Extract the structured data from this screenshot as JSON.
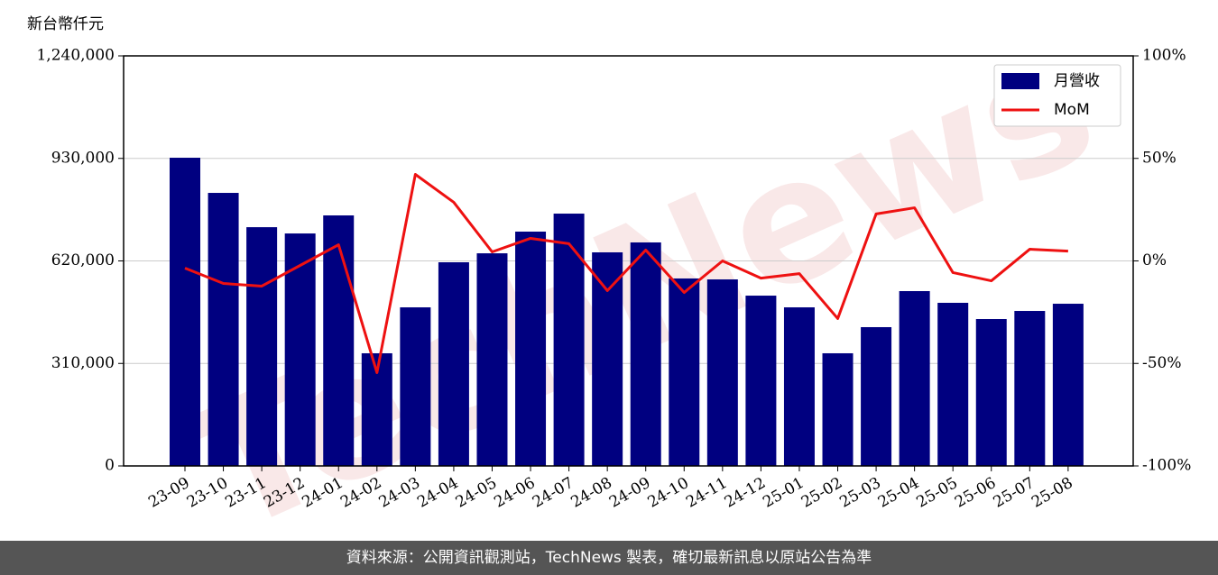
{
  "chart_data": {
    "type": "bar-line",
    "y_label": "新台幣仟元",
    "watermark": "TechNews",
    "footer": "資料來源：公開資訊觀測站，TechNews 製表，確切最新訊息以原站公告為準",
    "categories": [
      "23-09",
      "23-10",
      "23-11",
      "23-12",
      "24-01",
      "24-02",
      "24-03",
      "24-04",
      "24-05",
      "24-06",
      "24-07",
      "24-08",
      "24-09",
      "24-10",
      "24-11",
      "24-12",
      "25-01",
      "25-02",
      "25-03",
      "25-04",
      "25-05",
      "25-06",
      "25-07",
      "25-08"
    ],
    "series": [
      {
        "name": "月營收",
        "type": "bar",
        "color": "#000080",
        "values": [
          932000,
          825700,
          722000,
          703000,
          757600,
          340700,
          479600,
          615900,
          643000,
          708600,
          763000,
          645900,
          675900,
          566900,
          564100,
          515000,
          479600,
          340700,
          419700,
          528700,
          493300,
          444200,
          468700,
          490500
        ]
      },
      {
        "name": "MoM",
        "type": "line",
        "axis": "y2",
        "color": "#ee1111",
        "values": [
          -3.5,
          -11,
          -12.3,
          -2.2,
          7.9,
          -54.5,
          42.2,
          28.6,
          4.4,
          11,
          8.4,
          -14.5,
          5.3,
          -15.4,
          0,
          -8.4,
          -6.2,
          -28.1,
          22.9,
          25.9,
          -5.7,
          -9.7,
          5.7,
          4.8
        ]
      }
    ],
    "ylim": [
      0,
      1240000
    ],
    "yticks": [
      0,
      {
        "value": 310000,
        "label": "310,000"
      },
      {
        "value": 620000,
        "label": "620,000"
      },
      {
        "value": 930000,
        "label": "930,000"
      },
      {
        "value": 1240000,
        "label": "1,240,000"
      }
    ],
    "y2lim": [
      -100,
      100
    ],
    "y2ticks": [
      {
        "value": -100,
        "label": "-100%"
      },
      {
        "value": -50,
        "label": "-50%"
      },
      {
        "value": 0,
        "label": "0%"
      },
      {
        "value": 50,
        "label": "50%"
      },
      {
        "value": 100,
        "label": "100%"
      }
    ],
    "grid": true,
    "legend": "upper right"
  }
}
